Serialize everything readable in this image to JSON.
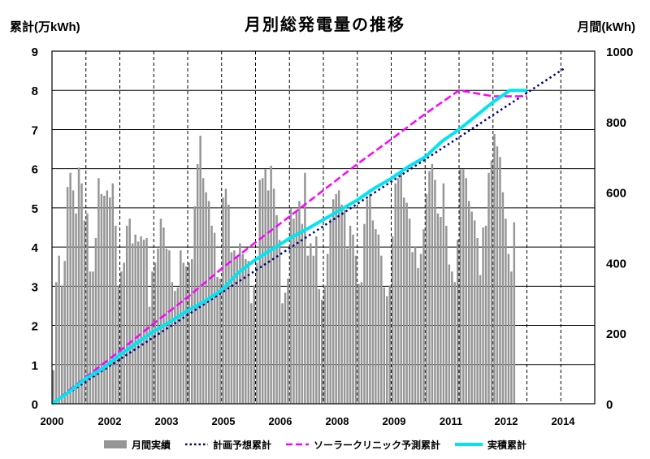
{
  "chart_data": {
    "type": "bar",
    "title": "月別総発電量の推移",
    "ylabel_left": "累計(万kWh)",
    "ylabel_right": "月間(kWh)",
    "ylim_left": [
      0,
      9
    ],
    "ylim_right": [
      0,
      1000
    ],
    "yticks_left": [
      "0",
      "1",
      "2",
      "3",
      "4",
      "5",
      "6",
      "7",
      "8",
      "9"
    ],
    "yticks_right": [
      "0",
      "200",
      "400",
      "600",
      "800",
      "1000"
    ],
    "xticks": [
      "2000",
      "2002",
      "2003",
      "2005",
      "2006",
      "2008",
      "2009",
      "2011",
      "2012",
      "2014"
    ],
    "xlim_months": [
      0,
      192
    ],
    "grid": true,
    "legend_position": "bottom",
    "legend": [
      "月間実績",
      "計画予想累計",
      "ソーラークリニック予測累計",
      "実積累計"
    ],
    "colors": {
      "bars": "#969696",
      "plan": "#000080",
      "solar_clinic": "#ff00ff",
      "actual": "#00e5f0"
    },
    "series": [
      {
        "name": "月間実績",
        "axis": "right",
        "kind": "bar",
        "values": [
          95,
          345,
          420,
          335,
          405,
          615,
          655,
          605,
          540,
          670,
          625,
          520,
          540,
          375,
          375,
          470,
          640,
          595,
          590,
          605,
          585,
          625,
          505,
          335,
          375,
          400,
          505,
          525,
          455,
          480,
          460,
          475,
          465,
          470,
          275,
          375,
          400,
          440,
          525,
          500,
          440,
          435,
          345,
          320,
          330,
          435,
          400,
          390,
          400,
          410,
          560,
          680,
          760,
          640,
          600,
          575,
          505,
          485,
          360,
          355,
          585,
          610,
          565,
          430,
          435,
          415,
          455,
          425,
          410,
          405,
          285,
          335,
          400,
          635,
          640,
          665,
          605,
          675,
          610,
          535,
          465,
          285,
          315,
          355,
          555,
          525,
          545,
          575,
          510,
          655,
          420,
          455,
          420,
          475,
          325,
          295,
          335,
          425,
          525,
          580,
          595,
          605,
          565,
          550,
          440,
          505,
          480,
          420,
          340,
          345,
          510,
          580,
          595,
          520,
          495,
          480,
          420,
          330,
          305,
          335,
          475,
          625,
          640,
          655,
          585,
          570,
          525,
          430,
          445,
          385,
          425,
          495,
          595,
          660,
          680,
          635,
          540,
          530,
          625,
          505,
          395,
          375,
          345,
          465,
          665,
          665,
          640,
          575,
          545,
          520,
          470,
          365,
          500,
          505,
          655,
          690,
          765,
          730,
          700,
          600,
          525,
          425,
          375,
          515
        ]
      },
      {
        "name": "計画予想累計",
        "axis": "left",
        "kind": "line",
        "x": [
          0,
          181
        ],
        "values": [
          0,
          8.55
        ]
      },
      {
        "name": "ソーラークリニック予測累計",
        "axis": "left",
        "kind": "line",
        "x": [
          0,
          12,
          24,
          36,
          48,
          60,
          72,
          84,
          96,
          108,
          120,
          132,
          144,
          156,
          168
        ],
        "values": [
          0,
          0.68,
          1.35,
          2.05,
          2.72,
          3.45,
          4.12,
          4.78,
          5.45,
          6.12,
          6.75,
          7.4,
          8.0,
          7.85,
          7.85
        ]
      },
      {
        "name": "実積累計",
        "axis": "left",
        "kind": "line",
        "x": [
          0,
          6,
          12,
          18,
          24,
          30,
          36,
          42,
          48,
          54,
          60,
          66,
          72,
          78,
          84,
          90,
          96,
          102,
          108,
          114,
          120,
          126,
          132,
          138,
          144,
          150,
          156,
          162,
          168
        ],
        "values": [
          0,
          0.3,
          0.65,
          0.9,
          1.25,
          1.55,
          1.85,
          2.1,
          2.38,
          2.62,
          2.9,
          3.35,
          3.68,
          3.95,
          4.22,
          4.45,
          4.7,
          4.95,
          5.2,
          5.5,
          5.75,
          6.05,
          6.3,
          6.7,
          7.0,
          7.35,
          7.7,
          8.0,
          8.0
        ]
      }
    ]
  }
}
